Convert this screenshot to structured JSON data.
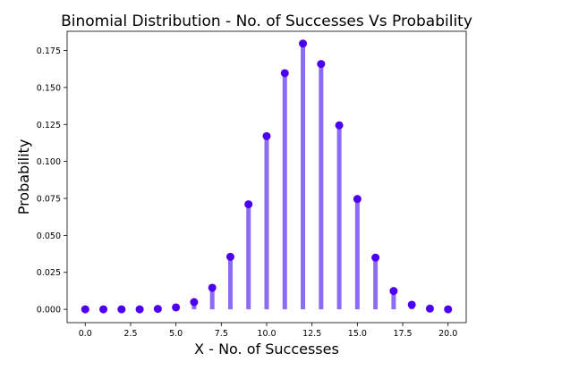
{
  "chart_data": {
    "type": "scatter",
    "subtype": "stem",
    "title": "Binomial Distribution - No. of Successes Vs Probability",
    "xlabel": "X - No. of Successes",
    "ylabel": "Probability",
    "xlim": [
      -1,
      21
    ],
    "ylim": [
      -0.009,
      0.188
    ],
    "xticks": [
      "0.0",
      "2.5",
      "5.0",
      "7.5",
      "10.0",
      "12.5",
      "15.0",
      "17.5",
      "20.0"
    ],
    "yticks": [
      "0.000",
      "0.025",
      "0.050",
      "0.075",
      "0.100",
      "0.125",
      "0.150",
      "0.175"
    ],
    "grid": false,
    "legend": "none",
    "colors": {
      "stem": "#8b6cf2",
      "marker": "#4b00f0"
    },
    "x": [
      0,
      1,
      2,
      3,
      4,
      5,
      6,
      7,
      8,
      9,
      10,
      11,
      12,
      13,
      14,
      15,
      16,
      17,
      18,
      19,
      20
    ],
    "y": [
      0.0,
      0.0,
      0.0,
      0.0,
      0.0003,
      0.0013,
      0.0049,
      0.0146,
      0.0355,
      0.071,
      0.1171,
      0.1597,
      0.1797,
      0.1659,
      0.1244,
      0.0746,
      0.035,
      0.0124,
      0.0031,
      0.0005,
      0.0
    ]
  }
}
